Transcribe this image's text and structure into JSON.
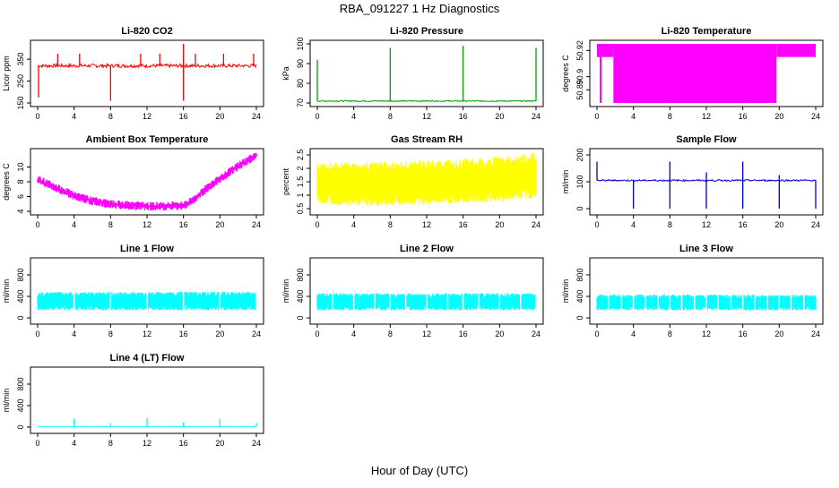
{
  "figure": {
    "title": "RBA_091227  1 Hz Diagnostics",
    "xlabel": "Hour of Day (UTC)"
  },
  "chart_data": [
    {
      "type": "line",
      "title": "Li-820 CO2",
      "ylabel": "Licor ppm",
      "xlim": [
        0,
        24
      ],
      "ylim": [
        150,
        420
      ],
      "xticks": [
        0,
        4,
        8,
        12,
        16,
        20,
        24
      ],
      "yticks": [
        150,
        250,
        350
      ],
      "color": "#ff0000",
      "base": 320,
      "noise": 8,
      "fill": false,
      "spikes": [
        [
          0.1,
          175
        ],
        [
          8,
          160
        ],
        [
          16,
          160
        ],
        [
          16,
          420
        ],
        [
          2.2,
          375
        ],
        [
          4.6,
          375
        ],
        [
          11.3,
          375
        ],
        [
          13.4,
          375
        ],
        [
          17.3,
          375
        ],
        [
          20.4,
          375
        ],
        [
          23.7,
          375
        ]
      ]
    },
    {
      "type": "line",
      "title": "Li-820 Pressure",
      "ylabel": "kPa",
      "xlim": [
        0,
        24
      ],
      "ylim": [
        70,
        100
      ],
      "xticks": [
        0,
        4,
        8,
        12,
        16,
        20,
        24
      ],
      "yticks": [
        70,
        80,
        90,
        100
      ],
      "color": "#00a000",
      "base": 71,
      "noise": 0.3,
      "fill": false,
      "spikes": [
        [
          0,
          92
        ],
        [
          8,
          98
        ],
        [
          16,
          99
        ],
        [
          24,
          98
        ]
      ]
    },
    {
      "type": "area",
      "title": "Li-820 Temperature",
      "ylabel": "degrees C",
      "xlim": [
        0,
        24
      ],
      "ylim": [
        50.88,
        50.925
      ],
      "xticks": [
        0,
        4,
        8,
        12,
        16,
        20,
        24
      ],
      "yticks": [
        50.89,
        50.9,
        50.92
      ],
      "color": "#ff00ff",
      "base": 50.925,
      "noise": 0,
      "fill": true,
      "bands": [
        [
          0,
          0.3,
          50.915
        ],
        [
          0.3,
          0.5,
          50.88
        ],
        [
          0.5,
          1.8,
          50.915
        ],
        [
          1.8,
          19.7,
          50.88
        ],
        [
          19.7,
          24,
          50.915
        ]
      ]
    },
    {
      "type": "area",
      "title": "Ambient Box Temperature",
      "ylabel": "degrees C",
      "xlim": [
        0,
        24
      ],
      "ylim": [
        4,
        12
      ],
      "xticks": [
        0,
        4,
        8,
        12,
        16,
        20,
        24
      ],
      "yticks": [
        4,
        6,
        8,
        10
      ],
      "color": "#ff00ff",
      "noise": 0.6,
      "fill": false,
      "x": [
        0,
        2,
        4,
        6,
        8,
        10,
        12,
        14,
        16,
        17,
        18,
        20,
        22,
        24
      ],
      "y": [
        8.3,
        7.2,
        6.1,
        5.4,
        5.0,
        4.8,
        4.7,
        4.7,
        4.8,
        5.4,
        6.6,
        8.4,
        10.1,
        11.6
      ]
    },
    {
      "type": "area",
      "title": "Gas Stream RH",
      "ylabel": "percent",
      "xlim": [
        0,
        24
      ],
      "ylim": [
        0.4,
        2.6
      ],
      "xticks": [
        0,
        4,
        8,
        12,
        16,
        20,
        24
      ],
      "yticks": [
        0.5,
        1.0,
        1.5,
        2.0,
        2.5
      ],
      "color": "#ffff00",
      "fill": true,
      "noise": 0,
      "x": [
        0,
        4,
        8,
        12,
        16,
        20,
        24
      ],
      "ylo": [
        0.7,
        0.6,
        0.6,
        0.65,
        0.7,
        0.75,
        0.9
      ],
      "yhi": [
        2.2,
        2.2,
        2.25,
        2.3,
        2.35,
        2.45,
        2.6
      ]
    },
    {
      "type": "line",
      "title": "Sample Flow",
      "ylabel": "ml/min",
      "xlim": [
        0,
        24
      ],
      "ylim": [
        -10,
        210
      ],
      "xticks": [
        0,
        4,
        8,
        12,
        16,
        20,
        24
      ],
      "yticks": [
        0,
        100,
        200
      ],
      "color": "#0000cc",
      "base": 105,
      "noise": 3,
      "fill": false,
      "spikes": [
        [
          0,
          175
        ],
        [
          4,
          0
        ],
        [
          8,
          0
        ],
        [
          8,
          175
        ],
        [
          12,
          0
        ],
        [
          12,
          135
        ],
        [
          16,
          0
        ],
        [
          16,
          175
        ],
        [
          20,
          0
        ],
        [
          20,
          125
        ],
        [
          24,
          0
        ]
      ]
    },
    {
      "type": "area",
      "title": "Line 1 Flow",
      "ylabel": "ml/min",
      "xlim": [
        0,
        24
      ],
      "ylim": [
        -50,
        1050
      ],
      "xticks": [
        0,
        4,
        8,
        12,
        16,
        20,
        24
      ],
      "yticks": [
        0,
        400,
        800
      ],
      "color": "#00ffff",
      "fill": true,
      "noise": 0,
      "x": [
        0,
        24
      ],
      "ylo": [
        140,
        140
      ],
      "yhi": [
        480,
        490
      ],
      "gaps": [
        4,
        8,
        12,
        16,
        20,
        24
      ]
    },
    {
      "type": "area",
      "title": "Line 2 Flow",
      "ylabel": "ml/min",
      "xlim": [
        0,
        24
      ],
      "ylim": [
        -50,
        1050
      ],
      "xticks": [
        0,
        4,
        8,
        12,
        16,
        20,
        24
      ],
      "yticks": [
        0,
        400,
        800
      ],
      "color": "#00ffff",
      "fill": true,
      "noise": 0,
      "x": [
        0,
        24
      ],
      "ylo": [
        140,
        140
      ],
      "yhi": [
        460,
        460
      ],
      "gaps": [
        1.7,
        4,
        6.3,
        8,
        9.7,
        12,
        14.3,
        16,
        17.7,
        20,
        22.3,
        24
      ]
    },
    {
      "type": "area",
      "title": "Line 3 Flow",
      "ylabel": "ml/min",
      "xlim": [
        0,
        24
      ],
      "ylim": [
        -50,
        1050
      ],
      "xticks": [
        0,
        4,
        8,
        12,
        16,
        20,
        24
      ],
      "yticks": [
        0,
        400,
        800
      ],
      "color": "#00ffff",
      "fill": true,
      "noise": 0,
      "x": [
        0,
        24
      ],
      "ylo": [
        140,
        140
      ],
      "yhi": [
        440,
        430
      ],
      "gaps": [
        1.3,
        2.7,
        4,
        5.3,
        6.7,
        8,
        9.3,
        10.7,
        12,
        13.3,
        14.7,
        16,
        17.3,
        18.7,
        20,
        21.3,
        22.7
      ]
    },
    {
      "type": "line",
      "title": "Line 4 (LT) Flow",
      "ylabel": "ml/min",
      "xlim": [
        0,
        24
      ],
      "ylim": [
        -50,
        1050
      ],
      "xticks": [
        0,
        4,
        8,
        12,
        16,
        20,
        24
      ],
      "yticks": [
        0,
        400,
        800
      ],
      "color": "#00ffff",
      "base": 12,
      "noise": 2,
      "fill": false,
      "spikes": [
        [
          4,
          160
        ],
        [
          8,
          80
        ],
        [
          12,
          170
        ],
        [
          16,
          90
        ],
        [
          20,
          160
        ],
        [
          24,
          80
        ]
      ]
    }
  ]
}
